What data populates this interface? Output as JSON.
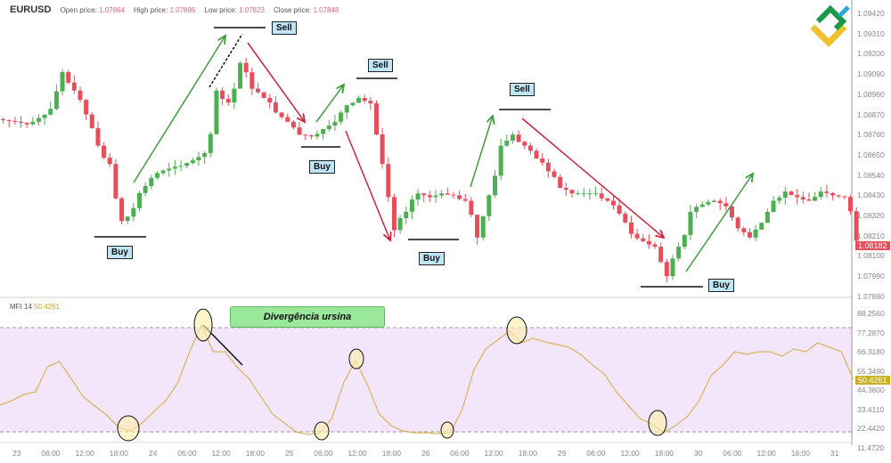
{
  "header": {
    "symbol": "EURUSD",
    "open_label": "Open price:",
    "open": "1.07864",
    "high_label": "High price:",
    "high": "1.07886",
    "low_label": "Low price:",
    "low": "1.07823",
    "close_label": "Close price:",
    "close": "1.07848"
  },
  "indicator": {
    "name": "MFI",
    "period": "14",
    "value": "50.4261"
  },
  "price_axis": [
    "1.09420",
    "1.09310",
    "1.09200",
    "1.09090",
    "1.08980",
    "1.08870",
    "1.08760",
    "1.08650",
    "1.08540",
    "1.08430",
    "1.08320",
    "1.08210",
    "1.08100",
    "1.07990",
    "1.07880"
  ],
  "mfi_axis": [
    "88.2560",
    "77.2870",
    "66.3180",
    "55.3490",
    "44.3800",
    "33.4110",
    "22.4420",
    "11.4720"
  ],
  "time_axis": [
    "23",
    "06:00",
    "12:00",
    "18:00",
    "24",
    "06:00",
    "12:00",
    "18:00",
    "25",
    "06:00",
    "12:00",
    "18:00",
    "26",
    "06:00",
    "12:00",
    "18:00",
    "29",
    "06:00",
    "12:00",
    "18:00",
    "30",
    "06:00",
    "12:00",
    "18:00",
    "31"
  ],
  "current_price": "1.08182",
  "current_mfi": "50.4261",
  "colors": {
    "up": "#4caf50",
    "down": "#e84d5b",
    "mfi_line": "#d9b25a",
    "mfi_band": "#f3e6fa",
    "buy_sell_bg": "#bfe6f7",
    "divergence_bg": "#9ae89a",
    "arrow_up": "#3a9e3a",
    "arrow_down": "#d0233a"
  },
  "signals": [
    "Sell",
    "Sell",
    "Sell",
    "Buy",
    "Buy",
    "Buy",
    "Buy"
  ],
  "divergence_label": "Divergência ursina",
  "mfi_levels": [
    80,
    20
  ],
  "chart_data": {
    "type": "candlestick",
    "interval": "2h",
    "price_range": [
      1.0788,
      1.0942
    ],
    "closes": [
      1.08839,
      1.0883,
      1.08816,
      1.0885,
      1.089,
      1.091,
      1.09,
      1.0887,
      1.087,
      1.086,
      1.0829,
      1.0836,
      1.0848,
      1.0855,
      1.08575,
      1.0859,
      1.0862,
      1.0866,
      1.09,
      1.08935,
      1.0915,
      1.0901,
      1.0896,
      1.0888,
      1.0883,
      1.0876,
      1.0875,
      1.0879,
      1.0883,
      1.0892,
      1.0896,
      1.0893,
      1.086,
      1.0824,
      1.0834,
      1.0844,
      1.0842,
      1.0844,
      1.0843,
      1.084,
      1.082,
      1.0843,
      1.087,
      1.0876,
      1.087,
      1.0863,
      1.0856,
      1.0847,
      1.0844,
      1.0844,
      1.0844,
      1.084,
      1.0833,
      1.0822,
      1.0818,
      1.0815,
      1.0799,
      1.0815,
      1.0834,
      1.0838,
      1.084,
      1.0837,
      1.0825,
      1.082,
      1.0828,
      1.084,
      1.0845,
      1.0842,
      1.084,
      1.0845,
      1.0843,
      1.0842,
      1.08182
    ],
    "mfi": [
      35.7,
      38.3,
      41.8,
      43.4,
      57.6,
      60.7,
      51.0,
      40.8,
      35.2,
      30.1,
      23.0,
      20.9,
      25.5,
      32.2,
      38.3,
      48.5,
      66.3,
      81.6,
      66.3,
      66.3,
      57.6,
      51.0,
      40.8,
      30.6,
      25.5,
      20.4,
      18.9,
      19.9,
      28.1,
      48.5,
      61.2,
      47.5,
      30.6,
      24.0,
      20.9,
      19.9,
      19.9,
      19.4,
      19.9,
      33.2,
      56.1,
      67.9,
      73.0,
      78.1,
      71.4,
      74.0,
      71.9,
      70.4,
      68.9,
      64.8,
      58.7,
      53.6,
      43.4,
      35.7,
      28.1,
      25.0,
      19.9,
      24.0,
      29.1,
      38.3,
      52.6,
      58.7,
      66.3,
      64.8,
      66.3,
      66.3,
      63.8,
      67.9,
      66.3,
      71.4,
      68.9,
      66.3,
      50.4
    ],
    "mfi_range": [
      11.472,
      88.256
    ]
  }
}
